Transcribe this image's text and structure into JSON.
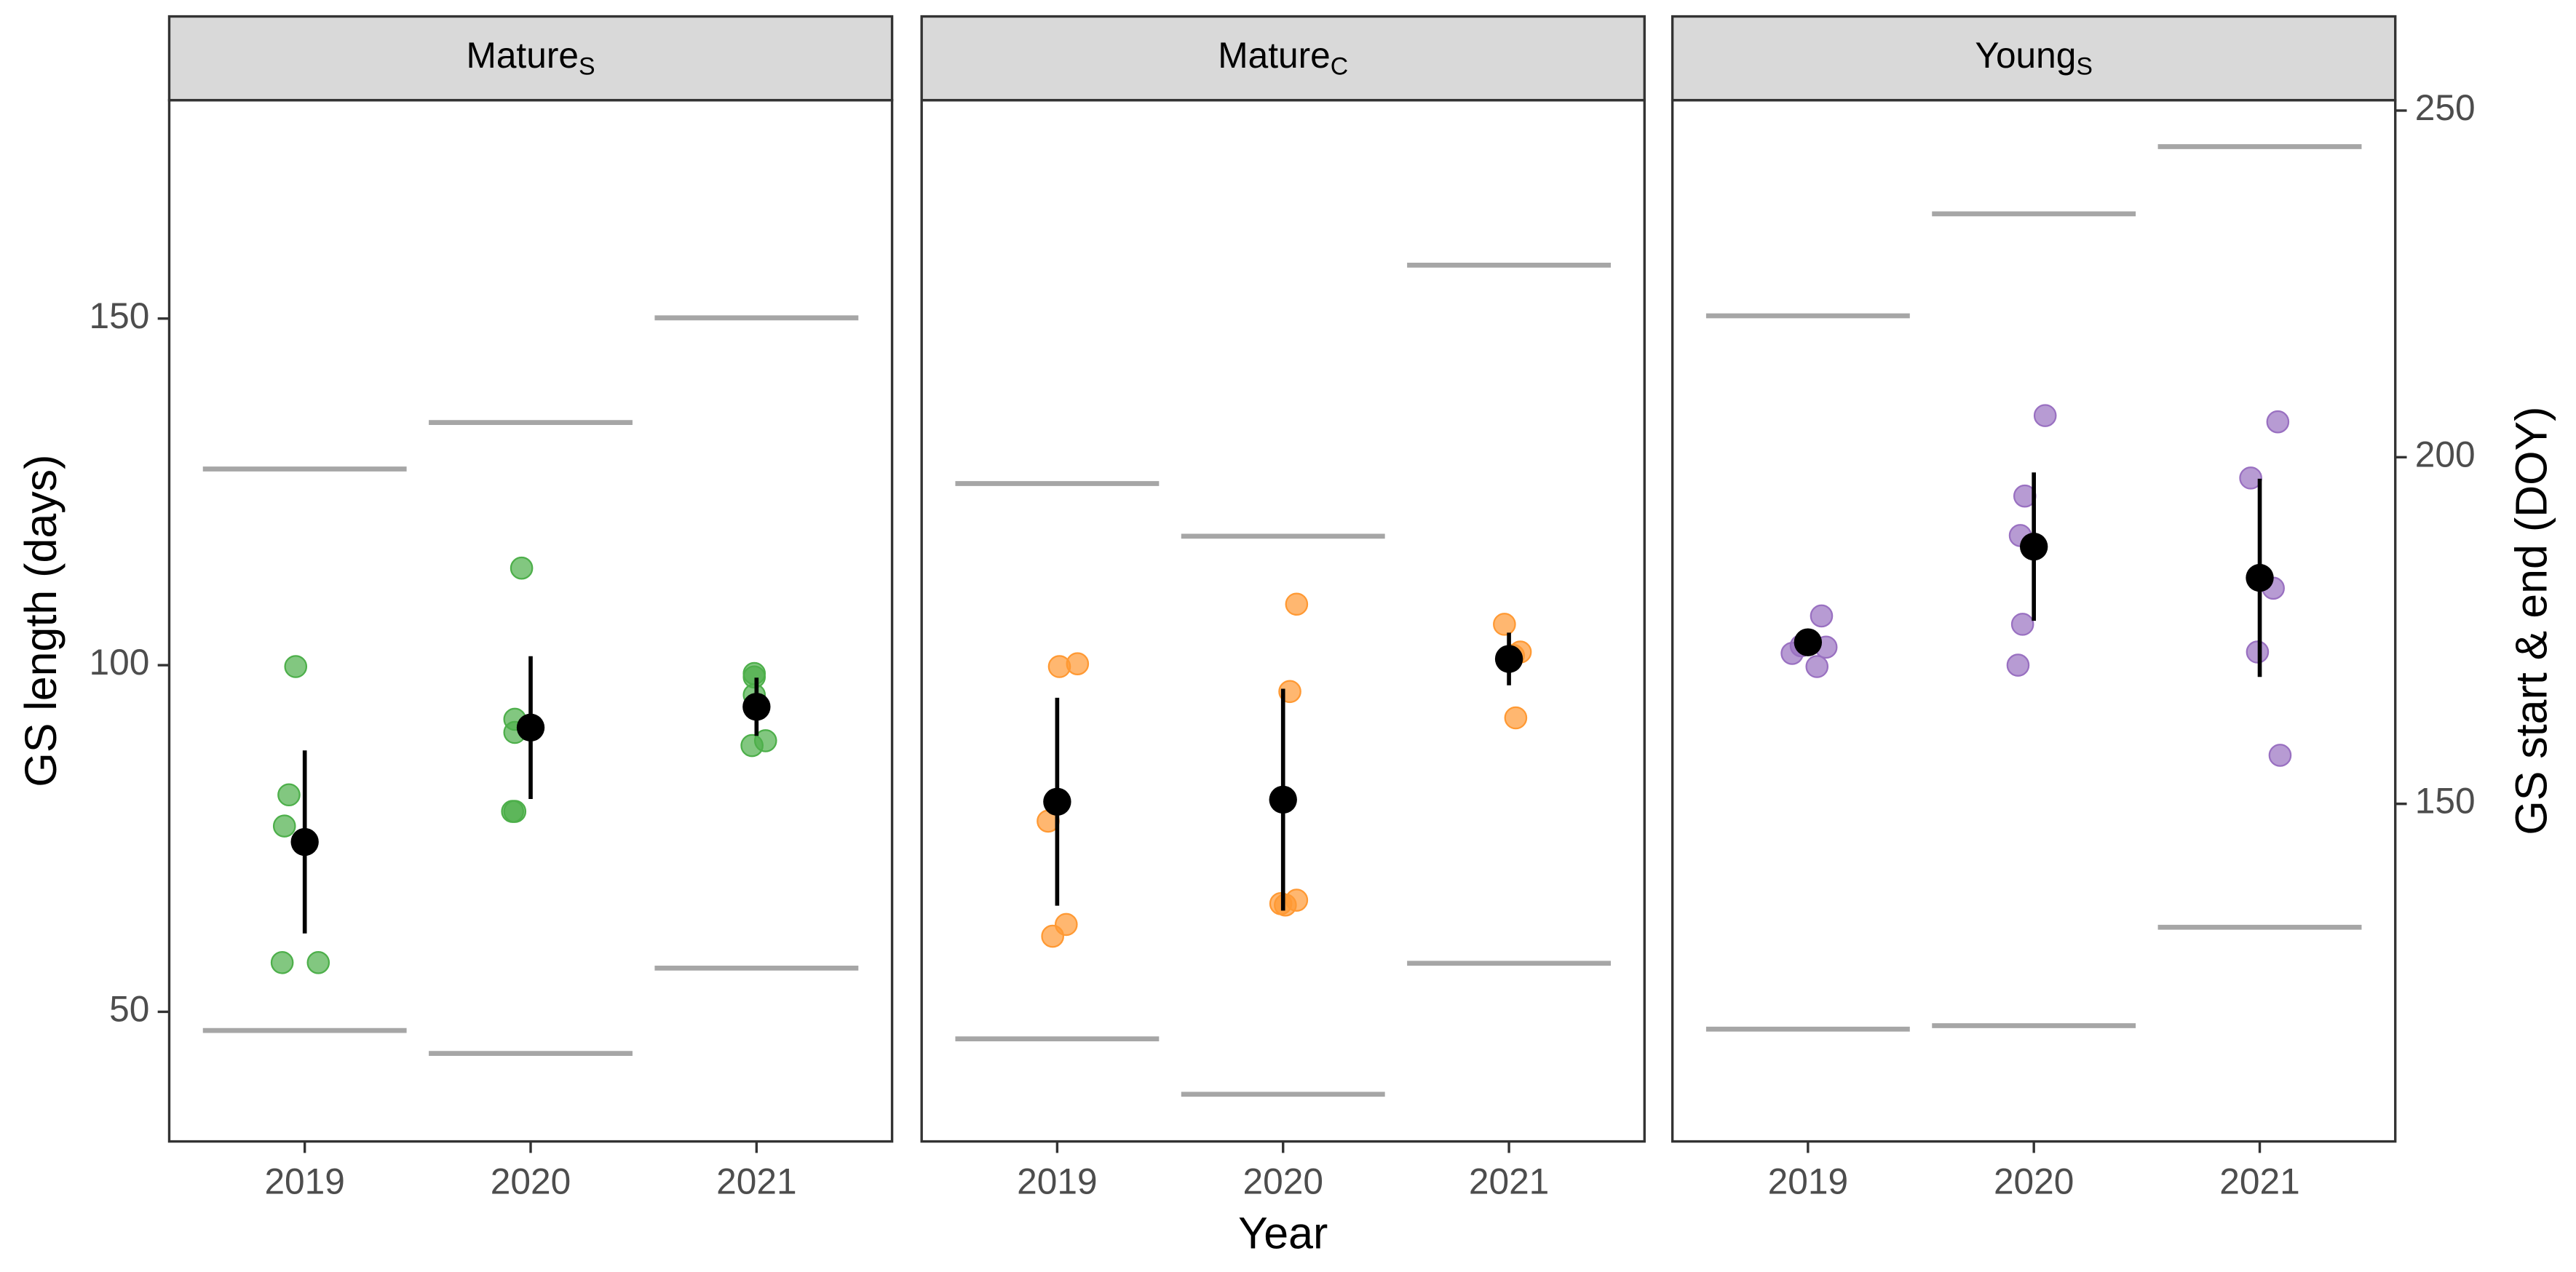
{
  "chart_data": {
    "type": "scatter",
    "xlabel": "Year",
    "ylabel": "GS length (days)",
    "y2label": "GS start & end (DOY)",
    "xlim": [
      2018.4,
      2021.6
    ],
    "xticks": [
      2019,
      2020,
      2021
    ],
    "ylim": [
      31.3,
      181.5
    ],
    "yticks": [
      50,
      100,
      150
    ],
    "y2lim": [
      101.3,
      251.5
    ],
    "y2ticks": [
      150,
      200,
      250
    ],
    "panels": [
      {
        "title": "Mature",
        "title_sub": "S",
        "color": "#4DAF4A",
        "points": {
          "x": [
            2018.96,
            2018.93,
            2018.91,
            2018.9,
            2019.06,
            2019.96,
            2019.93,
            2019.93,
            2019.92,
            2019.93,
            2020.99,
            2020.99,
            2020.99,
            2020.98,
            2021.04
          ],
          "values": [
            99.8,
            81.3,
            76.8,
            57.1,
            57.1,
            114.0,
            92.2,
            90.3,
            78.9,
            78.9,
            98.8,
            98.3,
            95.7,
            88.4,
            89.1
          ]
        },
        "mean": {
          "x": [
            2019,
            2020,
            2021
          ],
          "values": [
            74.5,
            91.0,
            94.0
          ],
          "errors": [
            13.2,
            10.3,
            4.2
          ]
        },
        "end": [
          198.3,
          205.0,
          220.1
        ],
        "start": [
          117.3,
          114.0,
          126.3
        ]
      },
      {
        "title": "Mature",
        "title_sub": "C",
        "color": "#FF9933",
        "points": {
          "x": [
            2019.01,
            2019.09,
            2018.96,
            2019.04,
            2018.98,
            2020.06,
            2020.03,
            2019.99,
            2020.01,
            2020.06,
            2020.98,
            2021.05,
            2021.02,
            2021.03
          ],
          "values": [
            99.8,
            100.2,
            77.5,
            62.6,
            60.9,
            108.8,
            96.2,
            65.6,
            65.4,
            66.1,
            105.9,
            101.9,
            101.4,
            92.4
          ]
        },
        "mean": {
          "x": [
            2019,
            2020,
            2021
          ],
          "values": [
            80.3,
            80.6,
            100.9
          ],
          "errors": [
            15.0,
            16.0,
            3.8
          ]
        },
        "end": [
          196.2,
          188.6,
          227.7
        ],
        "start": [
          116.1,
          108.1,
          127.0
        ]
      },
      {
        "title": "Young",
        "title_sub": "S",
        "color": "#9970C1",
        "points": {
          "x": [
            2018.93,
            2019.06,
            2019.08,
            2019.04,
            2018.97,
            2020.05,
            2019.96,
            2019.94,
            2019.95,
            2019.93,
            2021.08,
            2020.96,
            2021.06,
            2020.99,
            2021.09
          ],
          "values": [
            101.7,
            107.1,
            102.6,
            99.8,
            102.8,
            136.0,
            124.4,
            118.7,
            105.9,
            100.0,
            135.1,
            127.0,
            111.1,
            101.9,
            87.0
          ]
        },
        "mean": {
          "x": [
            2019,
            2020,
            2021
          ],
          "values": [
            103.3,
            117.1,
            112.6
          ],
          "errors": [
            1.0,
            10.7,
            14.3
          ]
        },
        "end": [
          220.4,
          235.1,
          244.8
        ],
        "start": [
          117.5,
          118.0,
          132.2
        ]
      }
    ]
  }
}
